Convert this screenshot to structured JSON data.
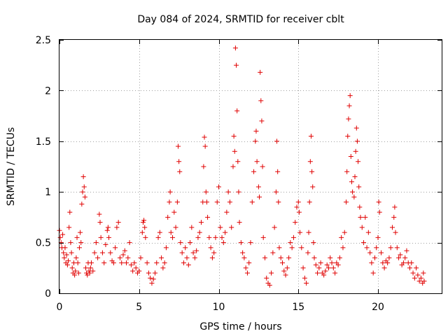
{
  "chart_data": {
    "type": "scatter",
    "title": "Day 084 of 2024, SRMTID for receiver cblt",
    "xlabel": "GPS time / hours",
    "ylabel": "SRMTID / TECUs",
    "xlim": [
      0,
      24
    ],
    "ylim": [
      0,
      2.5
    ],
    "xticks": [
      0,
      5,
      10,
      15,
      20
    ],
    "xtick_labels": [
      "0",
      "5",
      "10",
      "15",
      "20"
    ],
    "yticks": [
      0,
      0.5,
      1,
      1.5,
      2,
      2.5
    ],
    "ytick_labels": [
      "0",
      "0.5",
      "1",
      "1.5",
      "2",
      "2.5"
    ],
    "grid": true,
    "marker": "+",
    "color": "#e00000",
    "series": [
      {
        "name": "SRMTID",
        "points": [
          [
            0.0,
            0.62
          ],
          [
            0.05,
            0.55
          ],
          [
            0.1,
            0.5
          ],
          [
            0.15,
            0.45
          ],
          [
            0.2,
            0.58
          ],
          [
            0.25,
            0.4
          ],
          [
            0.3,
            0.35
          ],
          [
            0.35,
            0.45
          ],
          [
            0.4,
            0.3
          ],
          [
            0.45,
            0.38
          ],
          [
            0.5,
            0.28
          ],
          [
            0.55,
            0.32
          ],
          [
            0.6,
            0.65
          ],
          [
            0.65,
            0.8
          ],
          [
            0.7,
            0.5
          ],
          [
            0.75,
            0.4
          ],
          [
            0.8,
            0.25
          ],
          [
            0.85,
            0.2
          ],
          [
            0.9,
            0.3
          ],
          [
            0.95,
            0.18
          ],
          [
            1.0,
            0.22
          ],
          [
            1.05,
            0.35
          ],
          [
            1.1,
            0.55
          ],
          [
            1.15,
            0.3
          ],
          [
            1.2,
            0.2
          ],
          [
            1.25,
            0.45
          ],
          [
            1.3,
            0.6
          ],
          [
            1.35,
            0.5
          ],
          [
            1.4,
            0.88
          ],
          [
            1.45,
            1.0
          ],
          [
            1.5,
            1.15
          ],
          [
            1.55,
            1.05
          ],
          [
            1.6,
            0.95
          ],
          [
            1.65,
            0.25
          ],
          [
            1.7,
            0.2
          ],
          [
            1.75,
            0.18
          ],
          [
            1.8,
            0.3
          ],
          [
            1.85,
            0.22
          ],
          [
            1.9,
            0.2
          ],
          [
            1.95,
            0.25
          ],
          [
            2.0,
            0.3
          ],
          [
            2.1,
            0.22
          ],
          [
            2.2,
            0.4
          ],
          [
            2.3,
            0.5
          ],
          [
            2.4,
            0.35
          ],
          [
            2.5,
            0.78
          ],
          [
            2.55,
            0.7
          ],
          [
            2.6,
            0.55
          ],
          [
            2.7,
            0.4
          ],
          [
            2.8,
            0.3
          ],
          [
            2.9,
            0.48
          ],
          [
            3.0,
            0.62
          ],
          [
            3.05,
            0.65
          ],
          [
            3.1,
            0.55
          ],
          [
            3.2,
            0.4
          ],
          [
            3.3,
            0.32
          ],
          [
            3.4,
            0.3
          ],
          [
            3.5,
            0.45
          ],
          [
            3.6,
            0.65
          ],
          [
            3.7,
            0.7
          ],
          [
            3.8,
            0.35
          ],
          [
            3.9,
            0.3
          ],
          [
            4.0,
            0.38
          ],
          [
            4.1,
            0.42
          ],
          [
            4.2,
            0.3
          ],
          [
            4.3,
            0.35
          ],
          [
            4.4,
            0.5
          ],
          [
            4.5,
            0.28
          ],
          [
            4.6,
            0.22
          ],
          [
            4.7,
            0.3
          ],
          [
            4.8,
            0.25
          ],
          [
            4.9,
            0.2
          ],
          [
            5.0,
            0.22
          ],
          [
            5.1,
            0.35
          ],
          [
            5.2,
            0.6
          ],
          [
            5.25,
            0.7
          ],
          [
            5.3,
            0.72
          ],
          [
            5.35,
            0.65
          ],
          [
            5.4,
            0.55
          ],
          [
            5.5,
            0.3
          ],
          [
            5.6,
            0.2
          ],
          [
            5.7,
            0.15
          ],
          [
            5.8,
            0.1
          ],
          [
            5.9,
            0.14
          ],
          [
            6.0,
            0.2
          ],
          [
            6.1,
            0.3
          ],
          [
            6.2,
            0.55
          ],
          [
            6.3,
            0.6
          ],
          [
            6.4,
            0.35
          ],
          [
            6.5,
            0.25
          ],
          [
            6.6,
            0.3
          ],
          [
            6.7,
            0.45
          ],
          [
            6.8,
            0.75
          ],
          [
            6.9,
            0.9
          ],
          [
            6.95,
            1.0
          ],
          [
            7.0,
            0.6
          ],
          [
            7.1,
            0.55
          ],
          [
            7.2,
            0.8
          ],
          [
            7.3,
            0.65
          ],
          [
            7.4,
            0.9
          ],
          [
            7.45,
            1.45
          ],
          [
            7.5,
            1.3
          ],
          [
            7.55,
            1.2
          ],
          [
            7.6,
            0.5
          ],
          [
            7.7,
            0.4
          ],
          [
            7.8,
            0.3
          ],
          [
            7.9,
            0.45
          ],
          [
            8.0,
            0.35
          ],
          [
            8.1,
            0.28
          ],
          [
            8.2,
            0.5
          ],
          [
            8.3,
            0.65
          ],
          [
            8.4,
            0.4
          ],
          [
            8.5,
            0.35
          ],
          [
            8.6,
            0.42
          ],
          [
            8.7,
            0.55
          ],
          [
            8.8,
            0.6
          ],
          [
            8.9,
            0.7
          ],
          [
            9.0,
            0.9
          ],
          [
            9.05,
            1.25
          ],
          [
            9.1,
            1.54
          ],
          [
            9.15,
            1.45
          ],
          [
            9.2,
            1.0
          ],
          [
            9.25,
            0.9
          ],
          [
            9.3,
            0.75
          ],
          [
            9.4,
            0.55
          ],
          [
            9.5,
            0.45
          ],
          [
            9.6,
            0.35
          ],
          [
            9.7,
            0.4
          ],
          [
            9.8,
            0.55
          ],
          [
            9.9,
            0.9
          ],
          [
            10.0,
            1.05
          ],
          [
            10.1,
            0.65
          ],
          [
            10.2,
            0.55
          ],
          [
            10.3,
            0.5
          ],
          [
            10.4,
            0.6
          ],
          [
            10.5,
            0.8
          ],
          [
            10.6,
            1.0
          ],
          [
            10.7,
            0.9
          ],
          [
            10.8,
            0.65
          ],
          [
            10.9,
            1.25
          ],
          [
            10.95,
            1.55
          ],
          [
            11.0,
            1.4
          ],
          [
            11.05,
            2.42
          ],
          [
            11.1,
            2.25
          ],
          [
            11.15,
            1.8
          ],
          [
            11.2,
            1.3
          ],
          [
            11.25,
            1.0
          ],
          [
            11.3,
            0.7
          ],
          [
            11.4,
            0.5
          ],
          [
            11.5,
            0.4
          ],
          [
            11.6,
            0.35
          ],
          [
            11.7,
            0.25
          ],
          [
            11.8,
            0.2
          ],
          [
            11.9,
            0.3
          ],
          [
            12.0,
            0.5
          ],
          [
            12.1,
            0.9
          ],
          [
            12.2,
            1.2
          ],
          [
            12.3,
            1.5
          ],
          [
            12.35,
            1.6
          ],
          [
            12.4,
            1.3
          ],
          [
            12.5,
            1.05
          ],
          [
            12.55,
            0.95
          ],
          [
            12.6,
            2.18
          ],
          [
            12.65,
            1.9
          ],
          [
            12.7,
            1.7
          ],
          [
            12.75,
            1.25
          ],
          [
            12.8,
            0.55
          ],
          [
            12.9,
            0.35
          ],
          [
            13.0,
            0.15
          ],
          [
            13.1,
            0.1
          ],
          [
            13.2,
            0.08
          ],
          [
            13.3,
            0.2
          ],
          [
            13.4,
            0.4
          ],
          [
            13.5,
            0.65
          ],
          [
            13.6,
            1.0
          ],
          [
            13.65,
            1.5
          ],
          [
            13.7,
            1.2
          ],
          [
            13.75,
            0.9
          ],
          [
            13.8,
            0.45
          ],
          [
            13.9,
            0.35
          ],
          [
            14.0,
            0.3
          ],
          [
            14.1,
            0.22
          ],
          [
            14.2,
            0.18
          ],
          [
            14.3,
            0.25
          ],
          [
            14.4,
            0.35
          ],
          [
            14.5,
            0.5
          ],
          [
            14.6,
            0.45
          ],
          [
            14.7,
            0.55
          ],
          [
            14.8,
            0.7
          ],
          [
            14.9,
            0.85
          ],
          [
            15.0,
            0.9
          ],
          [
            15.05,
            0.8
          ],
          [
            15.1,
            0.6
          ],
          [
            15.2,
            0.45
          ],
          [
            15.3,
            0.25
          ],
          [
            15.4,
            0.15
          ],
          [
            15.5,
            0.1
          ],
          [
            15.6,
            0.4
          ],
          [
            15.65,
            0.6
          ],
          [
            15.7,
            0.9
          ],
          [
            15.75,
            1.3
          ],
          [
            15.8,
            1.55
          ],
          [
            15.85,
            1.2
          ],
          [
            15.9,
            1.05
          ],
          [
            15.95,
            0.5
          ],
          [
            16.0,
            0.35
          ],
          [
            16.1,
            0.28
          ],
          [
            16.2,
            0.2
          ],
          [
            16.3,
            0.25
          ],
          [
            16.4,
            0.3
          ],
          [
            16.5,
            0.2
          ],
          [
            16.6,
            0.18
          ],
          [
            16.7,
            0.22
          ],
          [
            16.8,
            0.28
          ],
          [
            16.9,
            0.25
          ],
          [
            17.0,
            0.35
          ],
          [
            17.1,
            0.3
          ],
          [
            17.2,
            0.25
          ],
          [
            17.3,
            0.2
          ],
          [
            17.4,
            0.3
          ],
          [
            17.5,
            0.28
          ],
          [
            17.6,
            0.35
          ],
          [
            17.7,
            0.55
          ],
          [
            17.8,
            0.45
          ],
          [
            17.9,
            0.6
          ],
          [
            18.0,
            0.9
          ],
          [
            18.05,
            1.2
          ],
          [
            18.1,
            1.55
          ],
          [
            18.15,
            1.72
          ],
          [
            18.2,
            1.85
          ],
          [
            18.25,
            1.95
          ],
          [
            18.3,
            1.35
          ],
          [
            18.35,
            1.1
          ],
          [
            18.4,
            1.0
          ],
          [
            18.5,
            0.95
          ],
          [
            18.55,
            1.15
          ],
          [
            18.6,
            1.4
          ],
          [
            18.65,
            1.63
          ],
          [
            18.7,
            1.5
          ],
          [
            18.75,
            1.3
          ],
          [
            18.8,
            1.05
          ],
          [
            18.85,
            0.85
          ],
          [
            18.9,
            0.75
          ],
          [
            19.0,
            0.65
          ],
          [
            19.1,
            0.5
          ],
          [
            19.2,
            0.75
          ],
          [
            19.3,
            0.45
          ],
          [
            19.4,
            0.6
          ],
          [
            19.5,
            0.4
          ],
          [
            19.6,
            0.3
          ],
          [
            19.7,
            0.2
          ],
          [
            19.8,
            0.35
          ],
          [
            19.9,
            0.45
          ],
          [
            20.0,
            0.55
          ],
          [
            20.05,
            0.9
          ],
          [
            20.1,
            0.8
          ],
          [
            20.2,
            0.4
          ],
          [
            20.3,
            0.3
          ],
          [
            20.4,
            0.25
          ],
          [
            20.5,
            0.32
          ],
          [
            20.6,
            0.3
          ],
          [
            20.7,
            0.35
          ],
          [
            20.8,
            0.45
          ],
          [
            20.9,
            0.65
          ],
          [
            21.0,
            0.75
          ],
          [
            21.05,
            0.85
          ],
          [
            21.1,
            0.6
          ],
          [
            21.2,
            0.45
          ],
          [
            21.3,
            0.35
          ],
          [
            21.4,
            0.38
          ],
          [
            21.5,
            0.28
          ],
          [
            21.6,
            0.3
          ],
          [
            21.7,
            0.35
          ],
          [
            21.8,
            0.42
          ],
          [
            21.9,
            0.3
          ],
          [
            22.0,
            0.25
          ],
          [
            22.1,
            0.3
          ],
          [
            22.2,
            0.2
          ],
          [
            22.3,
            0.15
          ],
          [
            22.4,
            0.25
          ],
          [
            22.5,
            0.18
          ],
          [
            22.6,
            0.12
          ],
          [
            22.7,
            0.15
          ],
          [
            22.8,
            0.1
          ],
          [
            22.85,
            0.2
          ],
          [
            22.9,
            0.12
          ]
        ]
      }
    ]
  }
}
